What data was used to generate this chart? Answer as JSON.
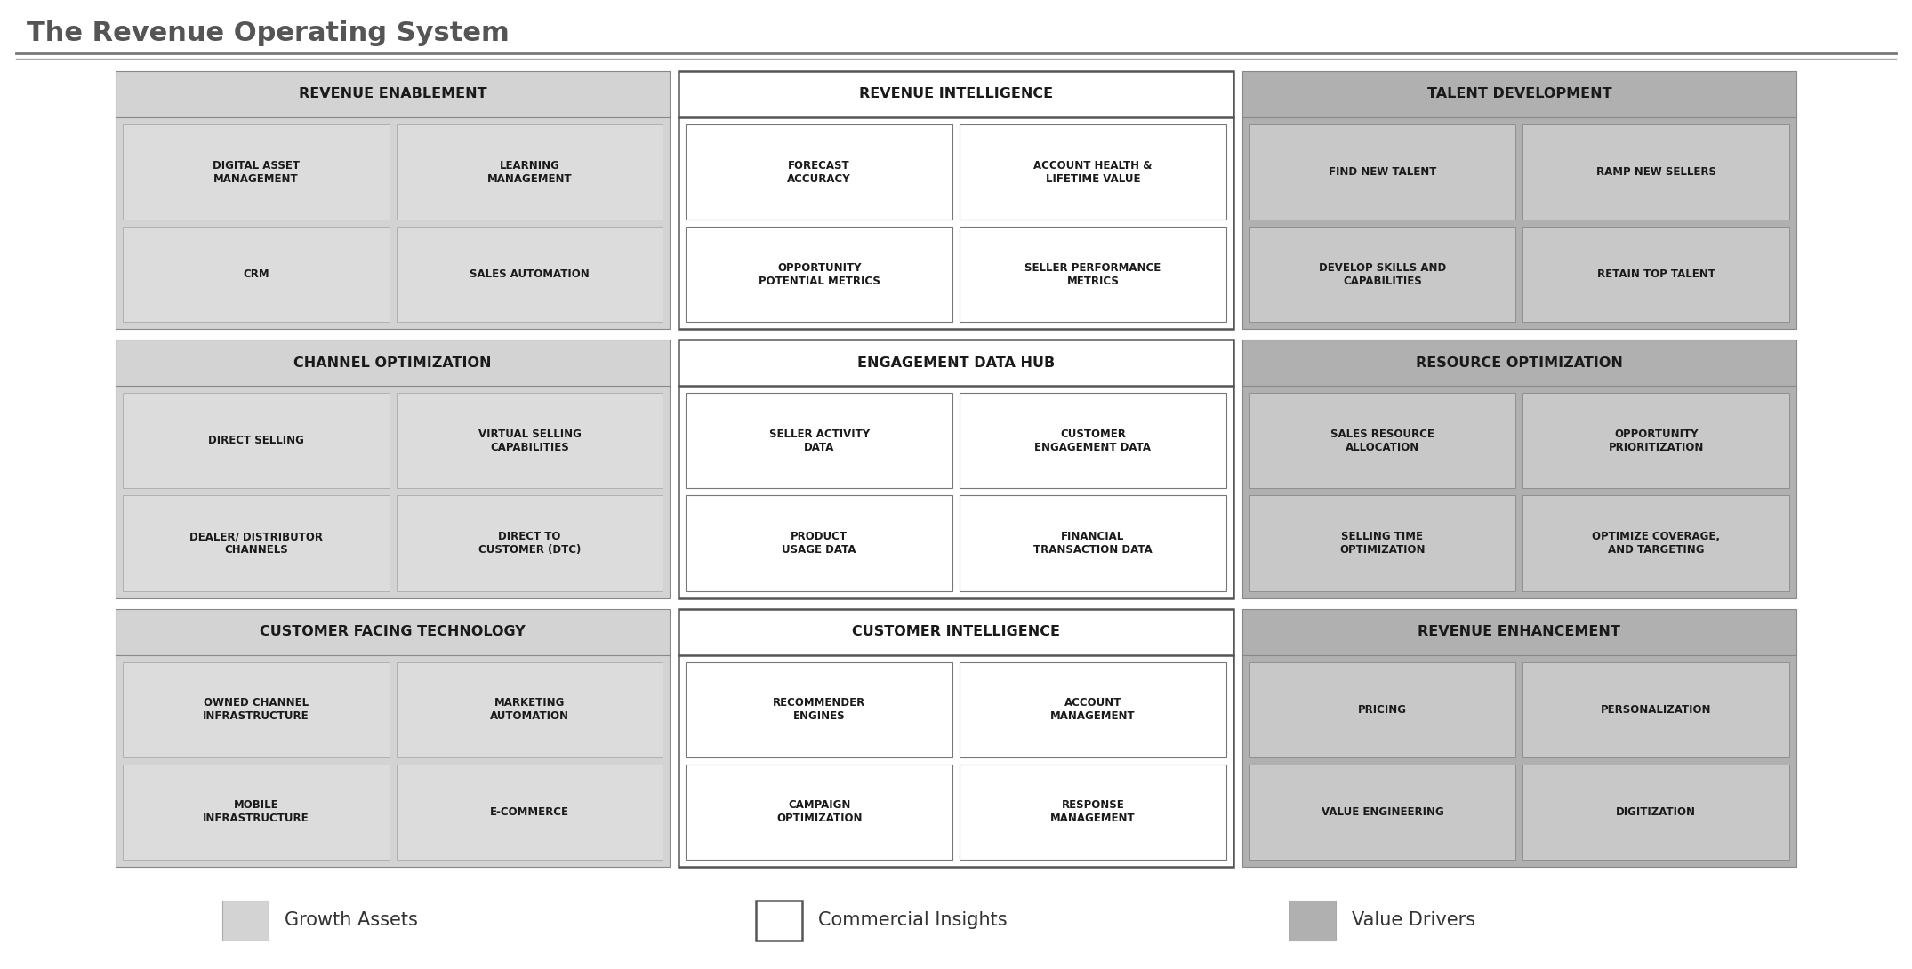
{
  "title": "The Revenue Operating System",
  "title_fontsize": 20,
  "title_color": "#555555",
  "bg_color": "#ffffff",
  "light_gray": "#d3d3d3",
  "medium_gray": "#b0b0b0",
  "white": "#ffffff",
  "header_text_color": "#1a1a1a",
  "cell_text_color": "#1a1a1a",
  "groups": [
    {
      "name": "REVENUE ENABLEMENT",
      "col": 0,
      "row": 0,
      "style": "light_gray",
      "cells": [
        {
          "text": "DIGITAL ASSET\nMANAGEMENT",
          "subcol": 0,
          "subrow": 0
        },
        {
          "text": "LEARNING\nMANAGEMENT",
          "subcol": 1,
          "subrow": 0
        },
        {
          "text": "CRM",
          "subcol": 0,
          "subrow": 1
        },
        {
          "text": "SALES AUTOMATION",
          "subcol": 1,
          "subrow": 1
        }
      ]
    },
    {
      "name": "REVENUE INTELLIGENCE",
      "col": 1,
      "row": 0,
      "style": "white",
      "cells": [
        {
          "text": "FORECAST\nACCURACY",
          "subcol": 0,
          "subrow": 0
        },
        {
          "text": "ACCOUNT HEALTH &\nLIFETIME VALUE",
          "subcol": 1,
          "subrow": 0
        },
        {
          "text": "OPPORTUNITY\nPOTENTIAL METRICS",
          "subcol": 0,
          "subrow": 1
        },
        {
          "text": "SELLER PERFORMANCE\nMETRICS",
          "subcol": 1,
          "subrow": 1
        }
      ]
    },
    {
      "name": "TALENT DEVELOPMENT",
      "col": 2,
      "row": 0,
      "style": "medium_gray",
      "cells": [
        {
          "text": "FIND NEW TALENT",
          "subcol": 0,
          "subrow": 0
        },
        {
          "text": "RAMP NEW SELLERS",
          "subcol": 1,
          "subrow": 0
        },
        {
          "text": "DEVELOP SKILLS AND\nCAPABILITIES",
          "subcol": 0,
          "subrow": 1
        },
        {
          "text": "RETAIN TOP TALENT",
          "subcol": 1,
          "subrow": 1
        }
      ]
    },
    {
      "name": "CHANNEL OPTIMIZATION",
      "col": 0,
      "row": 1,
      "style": "light_gray",
      "cells": [
        {
          "text": "DIRECT SELLING",
          "subcol": 0,
          "subrow": 0
        },
        {
          "text": "VIRTUAL SELLING\nCAPABILITIES",
          "subcol": 1,
          "subrow": 0
        },
        {
          "text": "DEALER/ DISTRIBUTOR\nCHANNELS",
          "subcol": 0,
          "subrow": 1
        },
        {
          "text": "DIRECT TO\nCUSTOMER (DTC)",
          "subcol": 1,
          "subrow": 1
        }
      ]
    },
    {
      "name": "ENGAGEMENT DATA HUB",
      "col": 1,
      "row": 1,
      "style": "white",
      "cells": [
        {
          "text": "SELLER ACTIVITY\nDATA",
          "subcol": 0,
          "subrow": 0
        },
        {
          "text": "CUSTOMER\nENGAGEMENT DATA",
          "subcol": 1,
          "subrow": 0
        },
        {
          "text": "PRODUCT\nUSAGE DATA",
          "subcol": 0,
          "subrow": 1
        },
        {
          "text": "FINANCIAL\nTRANSACTION DATA",
          "subcol": 1,
          "subrow": 1
        }
      ]
    },
    {
      "name": "RESOURCE OPTIMIZATION",
      "col": 2,
      "row": 1,
      "style": "medium_gray",
      "cells": [
        {
          "text": "SALES RESOURCE\nALLOCATION",
          "subcol": 0,
          "subrow": 0
        },
        {
          "text": "OPPORTUNITY\nPRIORITIZATION",
          "subcol": 1,
          "subrow": 0
        },
        {
          "text": "SELLING TIME\nOPTIMIZATION",
          "subcol": 0,
          "subrow": 1
        },
        {
          "text": "OPTIMIZE COVERAGE,\nAND TARGETING",
          "subcol": 1,
          "subrow": 1
        }
      ]
    },
    {
      "name": "CUSTOMER FACING TECHNOLOGY",
      "col": 0,
      "row": 2,
      "style": "light_gray",
      "cells": [
        {
          "text": "OWNED CHANNEL\nINFRASTRUCTURE",
          "subcol": 0,
          "subrow": 0
        },
        {
          "text": "MARKETING\nAUTOMATION",
          "subcol": 1,
          "subrow": 0
        },
        {
          "text": "MOBILE\nINFRASTRUCTURE",
          "subcol": 0,
          "subrow": 1
        },
        {
          "text": "E-COMMERCE",
          "subcol": 1,
          "subrow": 1
        }
      ]
    },
    {
      "name": "CUSTOMER INTELLIGENCE",
      "col": 1,
      "row": 2,
      "style": "white",
      "cells": [
        {
          "text": "RECOMMENDER\nENGINES",
          "subcol": 0,
          "subrow": 0
        },
        {
          "text": "ACCOUNT\nMANAGEMENT",
          "subcol": 1,
          "subrow": 0
        },
        {
          "text": "CAMPAIGN\nOPTIMIZATION",
          "subcol": 0,
          "subrow": 1
        },
        {
          "text": "RESPONSE\nMANAGEMENT",
          "subcol": 1,
          "subrow": 1
        }
      ]
    },
    {
      "name": "REVENUE ENHANCEMENT",
      "col": 2,
      "row": 2,
      "style": "medium_gray",
      "cells": [
        {
          "text": "PRICING",
          "subcol": 0,
          "subrow": 0
        },
        {
          "text": "PERSONALIZATION",
          "subcol": 1,
          "subrow": 0
        },
        {
          "text": "VALUE ENGINEERING",
          "subcol": 0,
          "subrow": 1
        },
        {
          "text": "DIGITIZATION",
          "subcol": 1,
          "subrow": 1
        }
      ]
    }
  ],
  "legend": [
    {
      "label": "Growth Assets",
      "color": "light_gray"
    },
    {
      "label": "Commercial Insights",
      "color": "white"
    },
    {
      "label": "Value Drivers",
      "color": "medium_gray"
    }
  ]
}
